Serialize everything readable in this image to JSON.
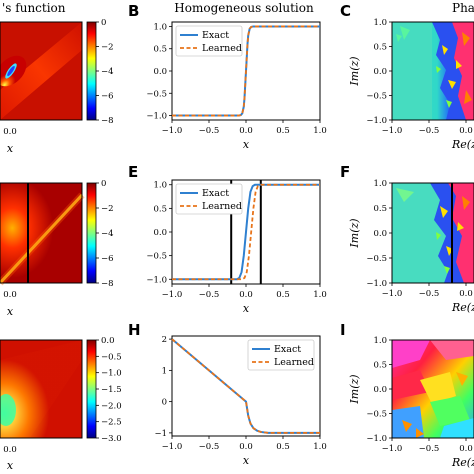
{
  "titles": {
    "green": "'s function",
    "homog": "Homogeneous solution",
    "phase": "Phase p"
  },
  "letters": {
    "B": "B",
    "C": "C",
    "E": "E",
    "F": "F",
    "H": "H",
    "I": "I"
  },
  "colorbars": [
    {
      "ticks": [
        "0",
        "−2",
        "−4",
        "−6",
        "−8"
      ],
      "values": [
        0,
        -2,
        -4,
        -6,
        -8
      ]
    },
    {
      "ticks": [
        "0",
        "−2",
        "−4",
        "−6",
        "−8"
      ],
      "values": [
        0,
        -2,
        -4,
        -6,
        -8
      ]
    },
    {
      "ticks": [
        "0.0",
        "−0.5",
        "−1.0",
        "−1.5",
        "−2.0",
        "−2.5",
        "−3.0"
      ],
      "values": [
        0,
        -0.5,
        -1,
        -1.5,
        -2,
        -2.5,
        -3
      ]
    }
  ],
  "left_xtick": "0.0",
  "left_xlabel": "x",
  "mid_xticks": [
    "−1.0",
    "−0.5",
    "0.0",
    "0.5",
    "1.0"
  ],
  "mid_xlabel": "x",
  "right_xticks": [
    "−1.0",
    "−0.5",
    "0.0",
    "0."
  ],
  "right_xlabel": "Re(z",
  "right_ylabel": "Im(z)",
  "right_yticks": [
    "1.0",
    "0.5",
    "0.0",
    "−0.5",
    "−1.0"
  ],
  "legend": {
    "exact": "Exact",
    "learned": "Learned"
  },
  "colors": {
    "exact": "#2f80d0",
    "learned": "#e8741a"
  },
  "chart_data": [
    {
      "type": "line",
      "panel": "B",
      "title": "Homogeneous solution",
      "xlabel": "x",
      "xlim": [
        -1,
        1
      ],
      "ylim": [
        -1.1,
        1.1
      ],
      "yticks": [
        "1.0",
        "0.5",
        "0.0",
        "−0.5",
        "−1.0"
      ],
      "ytick_values": [
        1,
        0.5,
        0,
        -0.5,
        -1
      ],
      "series": [
        {
          "name": "Exact",
          "x": [
            -1,
            -0.1,
            -0.07,
            -0.05,
            -0.03,
            -0.02,
            -0.01,
            0,
            0.01,
            0.02,
            0.03,
            0.05,
            0.07,
            0.1,
            1
          ],
          "y": [
            -1,
            -1,
            -0.99,
            -0.95,
            -0.8,
            -0.6,
            -0.3,
            0,
            0.3,
            0.6,
            0.8,
            0.95,
            0.99,
            1,
            1
          ]
        },
        {
          "name": "Learned",
          "x": [
            -1,
            -0.1,
            -0.07,
            -0.05,
            -0.03,
            -0.02,
            -0.01,
            0,
            0.01,
            0.02,
            0.03,
            0.05,
            0.07,
            0.1,
            1
          ],
          "y": [
            -1,
            -1,
            -0.99,
            -0.95,
            -0.8,
            -0.6,
            -0.3,
            0,
            0.3,
            0.6,
            0.8,
            0.95,
            0.99,
            1,
            1
          ]
        }
      ]
    },
    {
      "type": "line",
      "panel": "E",
      "xlabel": "x",
      "xlim": [
        -1,
        1
      ],
      "ylim": [
        -1.1,
        1.1
      ],
      "yticks": [
        "1.0",
        "0.5",
        "0.0",
        "−0.5",
        "−1.0"
      ],
      "ytick_values": [
        1,
        0.5,
        0,
        -0.5,
        -1
      ],
      "vlines": [
        -0.2,
        0.2
      ],
      "series": [
        {
          "name": "Exact",
          "x": [
            -1,
            -0.12,
            -0.09,
            -0.06,
            -0.03,
            0,
            0.03,
            0.06,
            0.09,
            0.12,
            1
          ],
          "y": [
            -1,
            -1,
            -0.97,
            -0.85,
            -0.5,
            0,
            0.5,
            0.85,
            0.97,
            1,
            1
          ]
        },
        {
          "name": "Learned",
          "x": [
            -1,
            -0.05,
            -0.02,
            0.01,
            0.04,
            0.07,
            0.1,
            0.13,
            0.16,
            0.2,
            1
          ],
          "y": [
            -1,
            -1,
            -0.97,
            -0.85,
            -0.5,
            0,
            0.5,
            0.85,
            0.97,
            1,
            1
          ]
        }
      ]
    },
    {
      "type": "line",
      "panel": "H",
      "xlabel": "x",
      "xlim": [
        -1,
        1
      ],
      "ylim": [
        -1.1,
        2.1
      ],
      "yticks": [
        "2",
        "1",
        "0",
        "−1"
      ],
      "ytick_values": [
        2,
        1,
        0,
        -1
      ],
      "series": [
        {
          "name": "Exact",
          "x": [
            -1,
            -0.5,
            0,
            0.03,
            0.06,
            0.1,
            0.15,
            0.2,
            0.3,
            1
          ],
          "y": [
            2,
            1.0,
            0.0,
            -0.45,
            -0.7,
            -0.85,
            -0.93,
            -0.97,
            -1.0,
            -1.0
          ]
        },
        {
          "name": "Learned",
          "x": [
            -1,
            -0.5,
            0,
            0.03,
            0.06,
            0.1,
            0.15,
            0.2,
            0.3,
            1
          ],
          "y": [
            2,
            1.0,
            0.0,
            -0.45,
            -0.7,
            -0.85,
            -0.93,
            -0.97,
            -1.0,
            -1.0
          ]
        }
      ]
    }
  ]
}
